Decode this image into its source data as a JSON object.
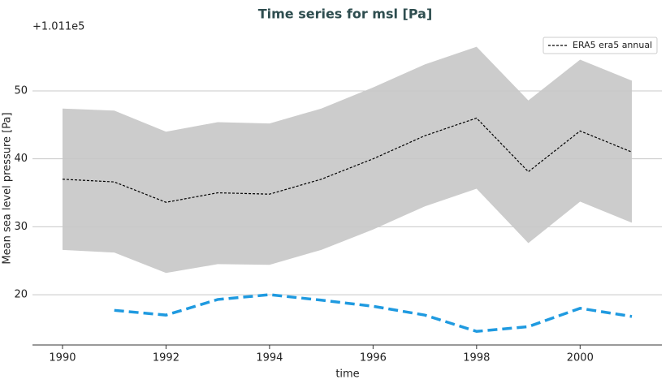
{
  "chart_data": {
    "type": "line",
    "title": "Time series for msl [Pa]",
    "x_label": "time",
    "y_label": "Mean sea level pressure [Pa]",
    "y_offset_label": "+1.011e5",
    "x": [
      1990,
      1991,
      1992,
      1993,
      1994,
      1995,
      1996,
      1997,
      1998,
      1999,
      2000,
      2001
    ],
    "band": {
      "color": "#cccccc",
      "upper": [
        47.4,
        47.1,
        44,
        45.4,
        45.2,
        47.4,
        50.5,
        53.9,
        56.5,
        48.6,
        54.6,
        51.5
      ],
      "lower": [
        26.6,
        26.2,
        23.2,
        24.5,
        24.4,
        26.6,
        29.6,
        33,
        35.6,
        27.6,
        33.7,
        30.6
      ]
    },
    "series": [
      {
        "name": "ERA5 era5 annual",
        "color": "#000000",
        "dash": "3,2",
        "width": 1.2,
        "values": [
          37,
          36.6,
          33.6,
          35,
          34.8,
          37,
          40,
          43.4,
          46,
          38.1,
          44.1,
          41
        ]
      },
      {
        "color": "#1f9ae0",
        "dash": "12,6",
        "width": 3.5,
        "values": [
          null,
          17.7,
          17,
          19.3,
          20,
          19.2,
          18.3,
          17,
          14.6,
          15.3,
          18,
          16.8
        ]
      }
    ],
    "xlim": [
      1989.42,
      2001.58
    ],
    "ylim": [
      12.6,
      58.6
    ],
    "xticks": [
      1990,
      1992,
      1994,
      1996,
      1998,
      2000
    ],
    "yticks": [
      20,
      30,
      40,
      50
    ],
    "grid": true,
    "legend": "upper-right"
  }
}
